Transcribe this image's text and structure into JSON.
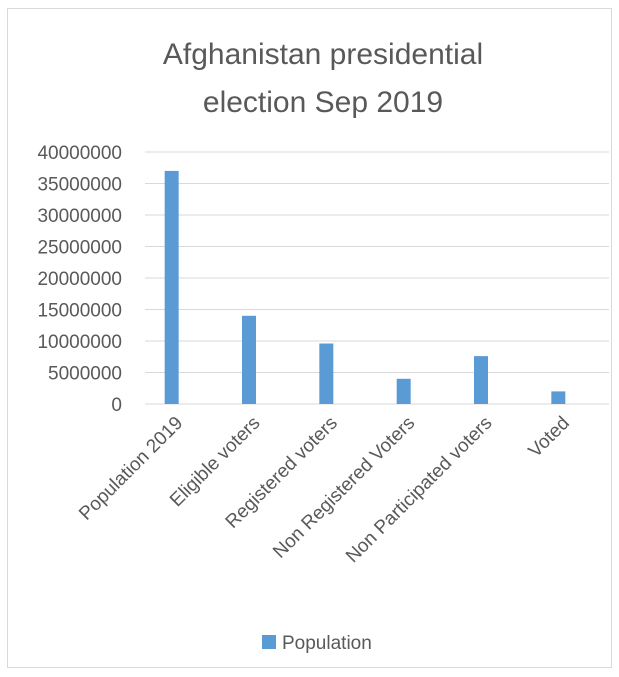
{
  "chart_data": {
    "type": "bar",
    "title_lines": [
      "Afghanistan presidential",
      "election Sep 2019"
    ],
    "categories": [
      "Population 2019",
      "Eligible voters",
      "Registered voters",
      "Non Registered Voters",
      "Non Participated voters",
      "Voted"
    ],
    "series": [
      {
        "name": "Population",
        "values": [
          37000000,
          14000000,
          9600000,
          4000000,
          7600000,
          2000000
        ]
      }
    ],
    "ylim": [
      0,
      40000000
    ],
    "yticks": [
      0,
      5000000,
      10000000,
      15000000,
      20000000,
      25000000,
      30000000,
      35000000,
      40000000
    ],
    "grid": true,
    "legend_position": "bottom",
    "colors": {
      "bar": "#5b9bd5",
      "grid": "#d9d9d9",
      "text": "#595959"
    }
  }
}
